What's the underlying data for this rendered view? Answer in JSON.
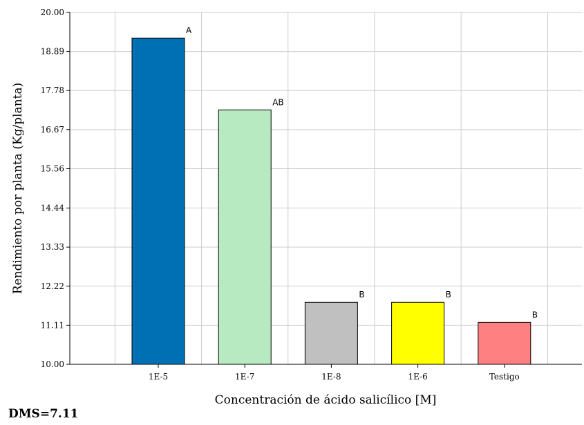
{
  "chart_data": {
    "type": "bar",
    "categories": [
      "1E-5",
      "1E-7",
      "1E-8",
      "1E-6",
      "Testigo"
    ],
    "values": [
      19.27,
      17.23,
      11.76,
      11.76,
      11.19
    ],
    "bar_letters": [
      "A",
      "AB",
      "B",
      "B",
      "B"
    ],
    "colors": [
      "#0070b4",
      "#b8eac1",
      "#c0c0c0",
      "#ffff00",
      "#ff8080"
    ],
    "ylabel": "Rendimiento por planta (Kg/planta)",
    "xlabel": "Concentración de ácido salicílico [M]",
    "ylim": [
      10.0,
      20.0
    ],
    "yticks": [
      "10.00",
      "11.11",
      "12.22",
      "13.33",
      "14.44",
      "15.56",
      "16.67",
      "17.78",
      "18.89",
      "20.00"
    ],
    "grid": true
  },
  "footnote": "DMS=7.11"
}
